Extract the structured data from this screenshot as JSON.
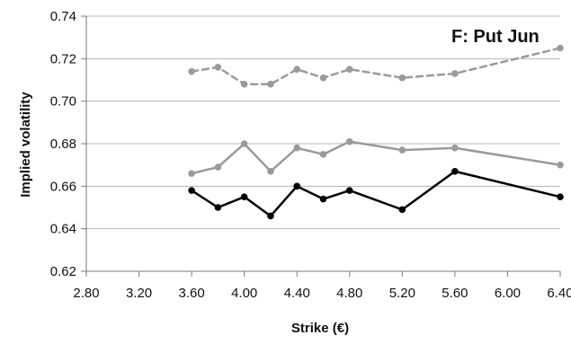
{
  "chart_data": {
    "type": "line",
    "title": "F: Put Jun",
    "xlabel": "Strike (€)",
    "ylabel": "Implied volatility",
    "xlim": [
      2.8,
      6.4
    ],
    "ylim": [
      0.62,
      0.74
    ],
    "x_ticks": [
      "2.80",
      "3.20",
      "3.60",
      "4.00",
      "4.40",
      "4.80",
      "5.20",
      "5.60",
      "6.00",
      "6.40"
    ],
    "y_ticks": [
      "0.62",
      "0.64",
      "0.66",
      "0.68",
      "0.70",
      "0.72",
      "0.74"
    ],
    "grid": "horizontal",
    "series": [
      {
        "color": "#9a9a9a",
        "dash": "dashed",
        "points": [
          [
            3.6,
            0.714
          ],
          [
            3.8,
            0.716
          ],
          [
            4.0,
            0.708
          ],
          [
            4.2,
            0.708
          ],
          [
            4.4,
            0.715
          ],
          [
            4.6,
            0.711
          ],
          [
            4.8,
            0.715
          ],
          [
            5.2,
            0.711
          ],
          [
            5.6,
            0.713
          ],
          [
            6.4,
            0.725
          ]
        ]
      },
      {
        "color": "#9a9a9a",
        "dash": "solid",
        "points": [
          [
            3.6,
            0.666
          ],
          [
            3.8,
            0.669
          ],
          [
            4.0,
            0.68
          ],
          [
            4.2,
            0.667
          ],
          [
            4.4,
            0.678
          ],
          [
            4.6,
            0.675
          ],
          [
            4.8,
            0.681
          ],
          [
            5.2,
            0.677
          ],
          [
            5.6,
            0.678
          ],
          [
            6.4,
            0.67
          ]
        ]
      },
      {
        "color": "#000000",
        "dash": "solid",
        "points": [
          [
            3.6,
            0.658
          ],
          [
            3.8,
            0.65
          ],
          [
            4.0,
            0.655
          ],
          [
            4.2,
            0.646
          ],
          [
            4.4,
            0.66
          ],
          [
            4.6,
            0.654
          ],
          [
            4.8,
            0.658
          ],
          [
            5.2,
            0.649
          ],
          [
            5.6,
            0.667
          ],
          [
            6.4,
            0.655
          ]
        ]
      }
    ]
  }
}
